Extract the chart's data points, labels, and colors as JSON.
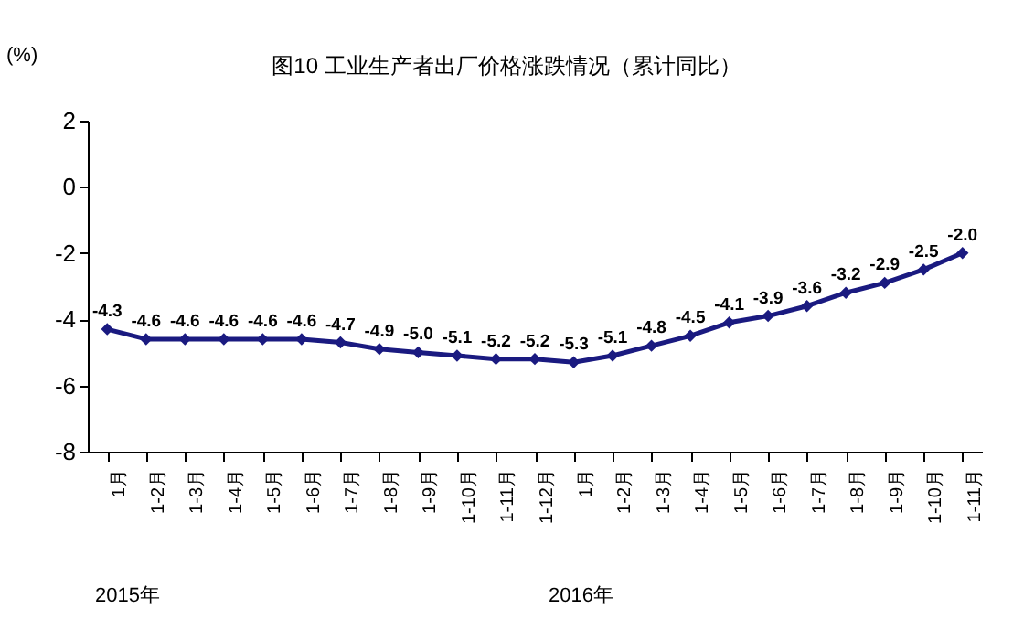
{
  "chart_data": {
    "type": "line",
    "title": "图10 工业生产者出厂价格涨跌情况（累计同比）",
    "ylabel": "(%)",
    "categories": [
      "1月",
      "1-2月",
      "1-3月",
      "1-4月",
      "1-5月",
      "1-6月",
      "1-7月",
      "1-8月",
      "1-9月",
      "1-10月",
      "1-11月",
      "1-12月",
      "1月",
      "1-2月",
      "1-3月",
      "1-4月",
      "1-5月",
      "1-6月",
      "1-7月",
      "1-8月",
      "1-9月",
      "1-10月",
      "1-11月"
    ],
    "series": [
      {
        "color": "#1a1a80",
        "values": [
          -4.3,
          -4.6,
          -4.6,
          -4.6,
          -4.6,
          -4.6,
          -4.7,
          -4.9,
          -5.0,
          -5.1,
          -5.2,
          -5.2,
          -5.3,
          -5.1,
          -4.8,
          -4.5,
          -4.1,
          -3.9,
          -3.6,
          -3.2,
          -2.9,
          -2.5,
          -2.0
        ]
      }
    ],
    "ylim": [
      -8,
      2
    ],
    "yticks": [
      -8,
      -6,
      -4,
      -2,
      0,
      2
    ],
    "grid": false,
    "marker": "diamond",
    "value_labels": [
      "-4.3",
      "-4.6",
      "-4.6",
      "-4.6",
      "-4.6",
      "-4.6",
      "-4.7",
      "-4.9",
      "-5.0",
      "-5.1",
      "-5.2",
      "-5.2",
      "-5.3",
      "-5.1",
      "-4.8",
      "-4.5",
      "-4.1",
      "-3.9",
      "-3.6",
      "-3.2",
      "-2.9",
      "-2.5",
      "-2.0"
    ],
    "annotations": [
      "2015年",
      "2016年"
    ]
  }
}
